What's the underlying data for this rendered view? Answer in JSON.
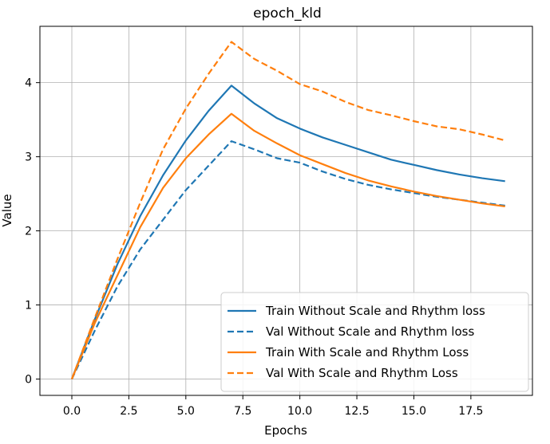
{
  "chart_data": {
    "type": "line",
    "title": "epoch_kld",
    "xlabel": "Epochs",
    "ylabel": "Value",
    "xlim": [
      -1.4,
      20.2
    ],
    "ylim": [
      -0.22,
      4.76
    ],
    "xticks": [
      0.0,
      2.5,
      5.0,
      7.5,
      10.0,
      12.5,
      15.0,
      17.5
    ],
    "xtick_labels": [
      "0.0",
      "2.5",
      "5.0",
      "7.5",
      "10.0",
      "12.5",
      "15.0",
      "17.5"
    ],
    "yticks": [
      0,
      1,
      2,
      3,
      4
    ],
    "ytick_labels": [
      "0",
      "1",
      "2",
      "3",
      "4"
    ],
    "grid": true,
    "legend_position": "lower-right",
    "x": [
      0,
      1,
      2,
      3,
      4,
      5,
      6,
      7,
      8,
      9,
      10,
      11,
      12,
      13,
      14,
      15,
      16,
      17,
      18,
      19
    ],
    "series": [
      {
        "name": "Train Without Scale and Rhythm loss",
        "color": "#1f77b4",
        "style": "solid",
        "values": [
          0.0,
          0.8,
          1.55,
          2.2,
          2.75,
          3.22,
          3.62,
          3.96,
          3.72,
          3.52,
          3.38,
          3.26,
          3.16,
          3.06,
          2.96,
          2.89,
          2.82,
          2.76,
          2.71,
          2.67
        ]
      },
      {
        "name": "Val Without Scale and Rhythm loss",
        "color": "#1f77b4",
        "style": "dashed",
        "values": [
          0.0,
          0.65,
          1.25,
          1.75,
          2.15,
          2.55,
          2.88,
          3.21,
          3.1,
          2.98,
          2.92,
          2.8,
          2.7,
          2.62,
          2.56,
          2.51,
          2.46,
          2.42,
          2.38,
          2.34
        ]
      },
      {
        "name": "Train With Scale and Rhythm Loss",
        "color": "#ff7f0e",
        "style": "solid",
        "values": [
          0.0,
          0.75,
          1.4,
          2.05,
          2.58,
          2.98,
          3.3,
          3.58,
          3.35,
          3.18,
          3.02,
          2.9,
          2.78,
          2.68,
          2.6,
          2.53,
          2.47,
          2.42,
          2.37,
          2.33
        ]
      },
      {
        "name": "Val With Scale and Rhythm Loss",
        "color": "#ff7f0e",
        "style": "dashed",
        "values": [
          0.0,
          0.82,
          1.62,
          2.38,
          3.1,
          3.65,
          4.12,
          4.55,
          4.32,
          4.16,
          3.98,
          3.88,
          3.74,
          3.63,
          3.56,
          3.48,
          3.41,
          3.37,
          3.3,
          3.22
        ]
      }
    ]
  }
}
